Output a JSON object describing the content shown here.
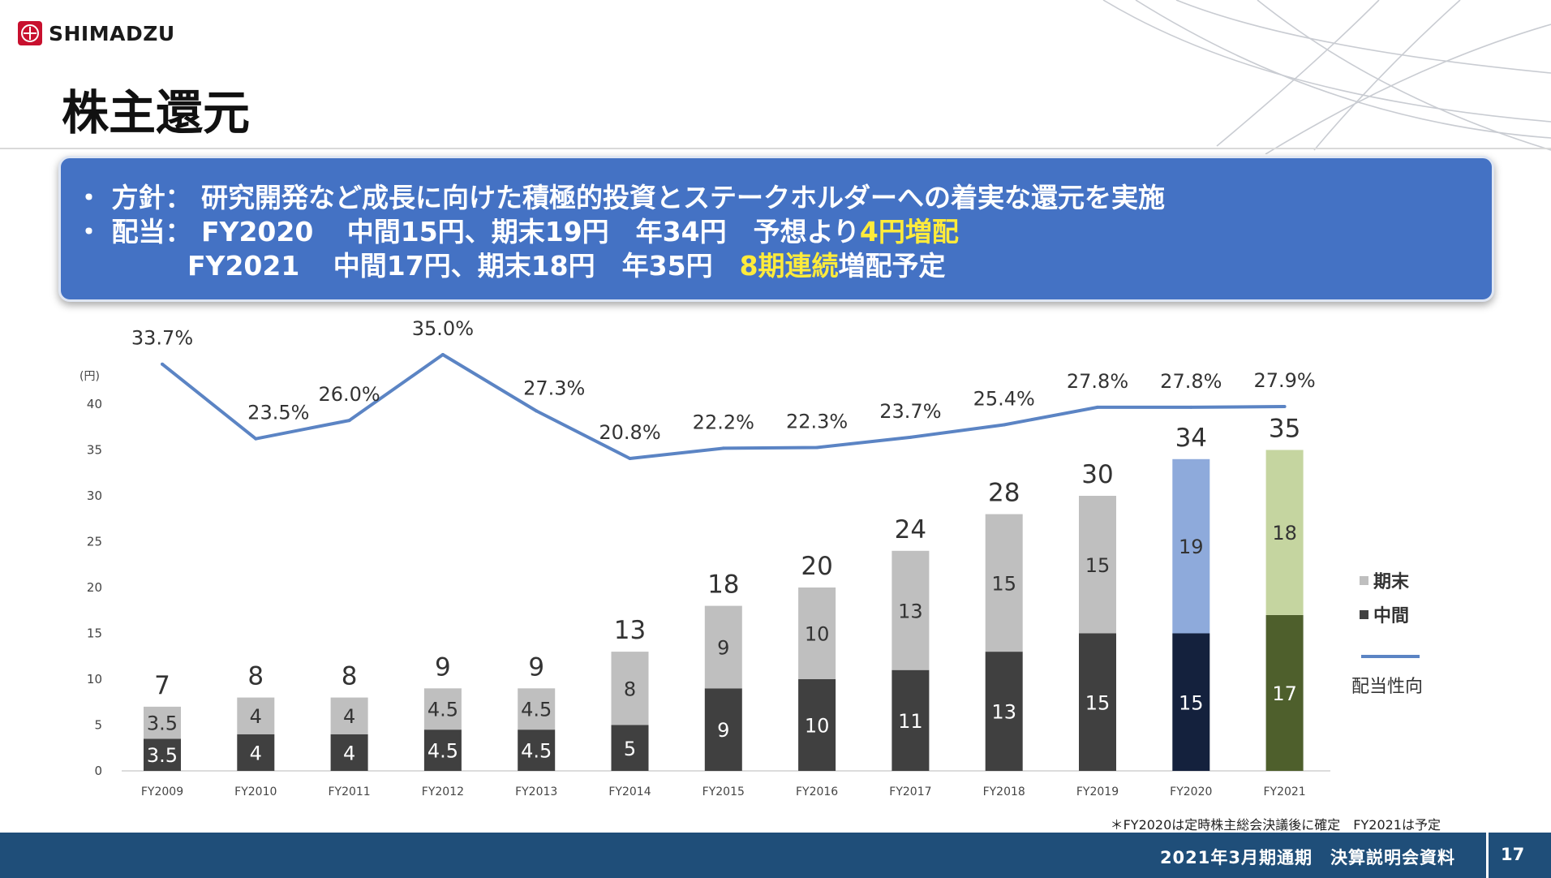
{
  "header": {
    "logo_text": "SHIMADZU",
    "page_title": "株主還元"
  },
  "banner": {
    "bullet": "・",
    "line1_label": "方針：",
    "line1_text": "研究開発など成長に向けた積極的投資とステークホルダーへの着実な還元を実施",
    "line2_label": "配当：",
    "line2_year": "FY2020",
    "line2_detail": "中間15円、期末19円　年34円　予想より",
    "line2_highlight": "4円増配",
    "line3_year": "FY2021",
    "line3_detail": "中間17円、期末18円　年35円　",
    "line3_highlight": "8期連続",
    "line3_tail": "増配予定"
  },
  "chart_data": {
    "type": "bar",
    "stacked": true,
    "ylabel": "(円)",
    "ylim": [
      0,
      40
    ],
    "yticks": [
      0,
      5,
      10,
      15,
      20,
      25,
      30,
      35,
      40
    ],
    "categories": [
      "FY2009",
      "FY2010",
      "FY2011",
      "FY2012",
      "FY2013",
      "FY2014",
      "FY2015",
      "FY2016",
      "FY2017",
      "FY2018",
      "FY2019",
      "FY2020",
      "FY2021"
    ],
    "series": [
      {
        "name": "中間",
        "values": [
          3.5,
          4,
          4,
          4.5,
          4.5,
          5,
          9,
          10,
          11,
          13,
          15,
          15,
          17
        ]
      },
      {
        "name": "期末",
        "values": [
          3.5,
          4,
          4,
          4.5,
          4.5,
          8,
          9,
          10,
          13,
          15,
          15,
          19,
          18
        ]
      }
    ],
    "totals": [
      7,
      8,
      8,
      9,
      9,
      13,
      18,
      20,
      24,
      28,
      30,
      34,
      35
    ],
    "interim_labels": [
      "3.5",
      "4",
      "4",
      "4.5",
      "4.5",
      "5",
      "9",
      "10",
      "11",
      "13",
      "15",
      "15",
      "17"
    ],
    "final_labels": [
      "3.5",
      "4",
      "4",
      "4.5",
      "4.5",
      "8",
      "9",
      "10",
      "13",
      "15",
      "15",
      "19",
      "18"
    ],
    "payout_ratio": {
      "name": "配当性向",
      "values": [
        33.7,
        23.5,
        26.0,
        35.0,
        27.3,
        20.8,
        22.2,
        22.3,
        23.7,
        25.4,
        27.8,
        27.8,
        27.9
      ],
      "labels": [
        "33.7%",
        "23.5%",
        "26.0%",
        "35.0%",
        "27.3%",
        "20.8%",
        "22.2%",
        "22.3%",
        "23.7%",
        "25.4%",
        "27.8%",
        "27.8%",
        "27.9%"
      ],
      "color": "#5b84c4"
    },
    "colors": {
      "interim": "#404040",
      "final": "#bfbfbf",
      "interim_fy2020": "#14213d",
      "final_fy2020": "#8eaadb",
      "interim_fy2021": "#4e5f2c",
      "final_fy2021": "#c5d5a0"
    },
    "legend": {
      "placement": "right",
      "final_label": "期末",
      "interim_label": "中間",
      "line_label": "配当性向"
    },
    "note": "＊FY2020は定時株主総会決議後に確定　FY2021は予定"
  },
  "footer": {
    "doc_title": "2021年3月期通期　決算説明会資料",
    "page_number": "17"
  }
}
